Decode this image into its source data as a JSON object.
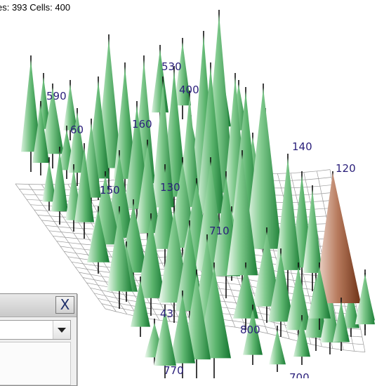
{
  "status": {
    "text": "es: 393 Cells: 400"
  },
  "plot_labels": [
    {
      "text": "590"
    },
    {
      "text": "530"
    },
    {
      "text": "400"
    },
    {
      "text": "60"
    },
    {
      "text": "160"
    },
    {
      "text": "140"
    },
    {
      "text": "120"
    },
    {
      "text": "150"
    },
    {
      "text": "130"
    },
    {
      "text": "710"
    },
    {
      "text": "43"
    },
    {
      "text": "800"
    },
    {
      "text": "770"
    },
    {
      "text": "700"
    }
  ],
  "colors": {
    "tree_green": "#2f9a47",
    "highlight_tree": "#8a4a2c",
    "label": "#2a1f7a",
    "grid": "#8a8a8a"
  },
  "panel": {
    "close_label": "X",
    "select_value": "",
    "icons": {
      "close": "close-icon",
      "dropdown": "chevron-down-icon"
    }
  }
}
